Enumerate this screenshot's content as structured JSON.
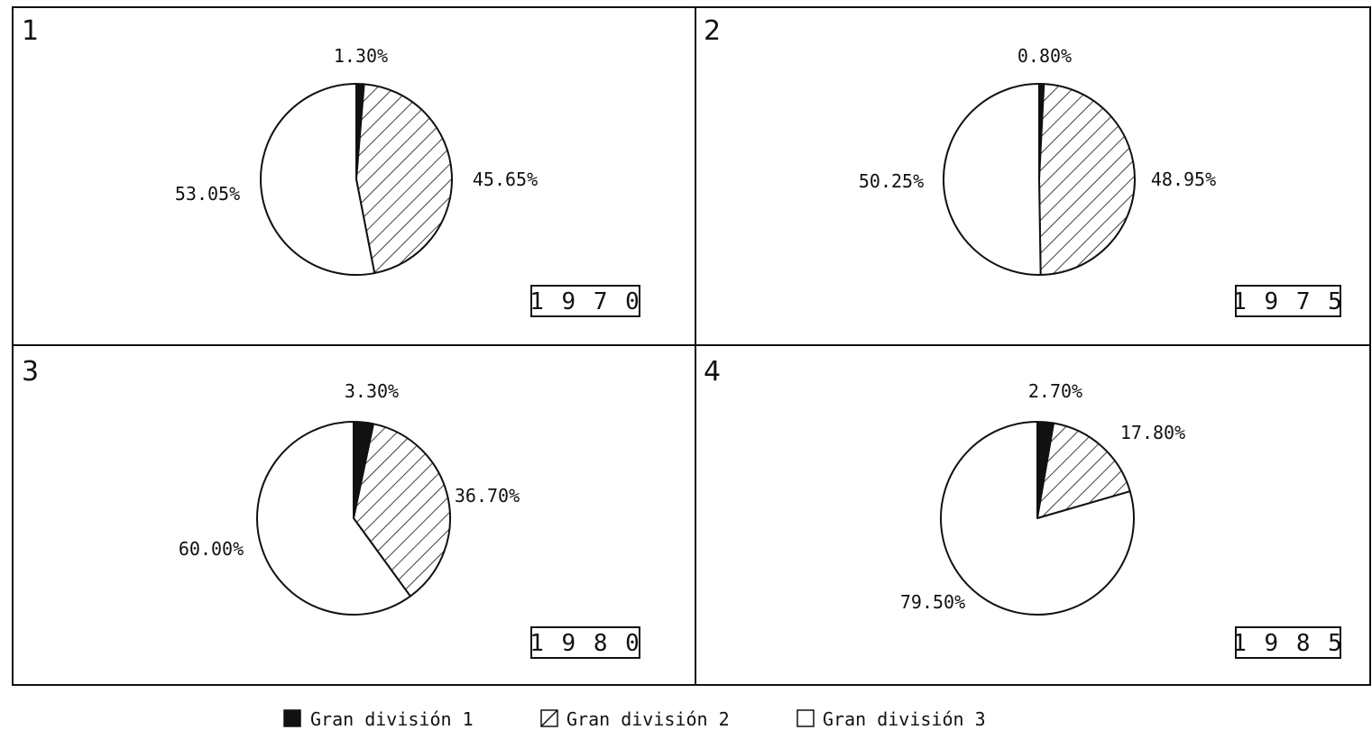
{
  "chart_data": [
    {
      "type": "pie",
      "panel": "1",
      "year_label": "1 9 7 0",
      "slices": [
        {
          "series": "Gran división 1",
          "value": 1.3,
          "label": "1.30%"
        },
        {
          "series": "Gran división 2",
          "value": 45.65,
          "label": "45.65%"
        },
        {
          "series": "Gran división 3",
          "value": 53.05,
          "label": "53.05%"
        }
      ]
    },
    {
      "type": "pie",
      "panel": "2",
      "year_label": "1 9 7 5",
      "slices": [
        {
          "series": "Gran división 1",
          "value": 0.8,
          "label": "0.80%"
        },
        {
          "series": "Gran división 2",
          "value": 48.95,
          "label": "48.95%"
        },
        {
          "series": "Gran división 3",
          "value": 50.25,
          "label": "50.25%"
        }
      ]
    },
    {
      "type": "pie",
      "panel": "3",
      "year_label": "1 9 8 0",
      "slices": [
        {
          "series": "Gran división 1",
          "value": 3.3,
          "label": "3.30%"
        },
        {
          "series": "Gran división 2",
          "value": 36.7,
          "label": "36.70%"
        },
        {
          "series": "Gran división 3",
          "value": 60.0,
          "label": "60.00%"
        }
      ]
    },
    {
      "type": "pie",
      "panel": "4",
      "year_label": "1 9 8 5",
      "slices": [
        {
          "series": "Gran división 1",
          "value": 2.7,
          "label": "2.70%"
        },
        {
          "series": "Gran división 2",
          "value": 17.8,
          "label": "17.80%"
        },
        {
          "series": "Gran división 3",
          "value": 79.5,
          "label": "79.50%"
        }
      ]
    }
  ],
  "legend": {
    "placement": "bottom",
    "items": [
      {
        "label": "Gran división 1",
        "fill": "solid"
      },
      {
        "label": "Gran división 2",
        "fill": "hatched"
      },
      {
        "label": "Gran división 3",
        "fill": "empty"
      }
    ]
  },
  "colors": {
    "ink": "#111111",
    "background": "#ffffff"
  }
}
